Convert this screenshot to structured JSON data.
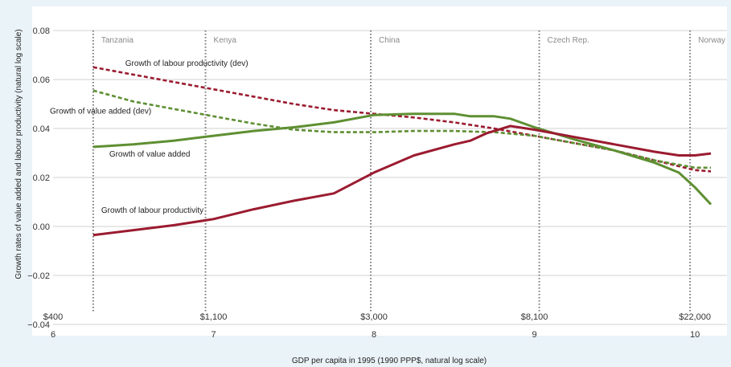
{
  "chart_data": {
    "type": "line",
    "xlabel": "GDP per capita in 1995 (1990 PPP$, natural log scale)",
    "ylabel": "Growth rates of value added and labour productivity (natural log scale)",
    "xlim": [
      6,
      10.2
    ],
    "ylim": [
      -0.04,
      0.08
    ],
    "x_ticks": [
      6,
      7,
      8,
      9,
      10
    ],
    "x_tick_labels": [
      "6",
      "7",
      "8",
      "9",
      "10"
    ],
    "y_ticks": [
      -0.04,
      -0.02,
      0.0,
      0.02,
      0.04,
      0.06,
      0.08
    ],
    "y_tick_labels": [
      "−0.04",
      "−0.02",
      "0.00",
      "0.02",
      "0.04",
      "0.06",
      "0.08"
    ],
    "gridlines": "horizontal",
    "dollar_labels": [
      {
        "x": 6.0,
        "label": "$400"
      },
      {
        "x": 7.0,
        "label": "$1,100"
      },
      {
        "x": 8.0,
        "label": "$3,000"
      },
      {
        "x": 9.0,
        "label": "$8,100"
      },
      {
        "x": 10.0,
        "label": "$22,000"
      }
    ],
    "country_markers": [
      {
        "name": "Tanzania",
        "x": 6.25
      },
      {
        "name": "Kenya",
        "x": 6.95
      },
      {
        "name": "China",
        "x": 7.98
      },
      {
        "name": "Czech Rep.",
        "x": 9.03
      },
      {
        "name": "Norway",
        "x": 9.97
      }
    ],
    "colors": {
      "labour": "#9b1b30",
      "value_added": "#5e8f32",
      "grid": "#d0d0d0",
      "marker": "#777777"
    },
    "series": [
      {
        "name": "Growth of labour productivity (dev)",
        "color": "#9b1b30",
        "dashed": true,
        "x": [
          6.25,
          6.5,
          6.75,
          7.0,
          7.25,
          7.5,
          7.75,
          8.0,
          8.25,
          8.5,
          8.75,
          9.0,
          9.25,
          9.5,
          9.75,
          10.0,
          10.1
        ],
        "y": [
          0.065,
          0.062,
          0.059,
          0.056,
          0.053,
          0.05,
          0.0475,
          0.046,
          0.0445,
          0.0425,
          0.04,
          0.037,
          0.034,
          0.031,
          0.027,
          0.023,
          0.0225
        ]
      },
      {
        "name": "Growth of value added (dev)",
        "color": "#5e8f32",
        "dashed": true,
        "x": [
          6.25,
          6.5,
          6.75,
          7.0,
          7.25,
          7.5,
          7.75,
          8.0,
          8.25,
          8.5,
          8.75,
          9.0,
          9.25,
          9.5,
          9.75,
          10.0,
          10.1
        ],
        "y": [
          0.0555,
          0.051,
          0.048,
          0.045,
          0.042,
          0.0395,
          0.0385,
          0.0385,
          0.039,
          0.039,
          0.0385,
          0.037,
          0.034,
          0.031,
          0.027,
          0.024,
          0.024
        ]
      },
      {
        "name": "Growth of value added",
        "color": "#5e8f32",
        "dashed": false,
        "x": [
          6.25,
          6.5,
          6.75,
          7.0,
          7.25,
          7.5,
          7.75,
          8.0,
          8.25,
          8.5,
          8.6,
          8.75,
          8.85,
          9.0,
          9.25,
          9.5,
          9.75,
          9.9,
          10.0,
          10.1
        ],
        "y": [
          0.0325,
          0.0335,
          0.035,
          0.037,
          0.039,
          0.0405,
          0.0425,
          0.0455,
          0.046,
          0.046,
          0.045,
          0.045,
          0.044,
          0.0405,
          0.0355,
          0.031,
          0.026,
          0.022,
          0.016,
          0.009
        ]
      },
      {
        "name": "Growth of labour productivity",
        "color": "#9b1b30",
        "dashed": false,
        "x": [
          6.25,
          6.5,
          6.75,
          7.0,
          7.25,
          7.5,
          7.75,
          8.0,
          8.25,
          8.5,
          8.6,
          8.7,
          8.85,
          9.0,
          9.25,
          9.5,
          9.75,
          9.9,
          10.0,
          10.1
        ],
        "y": [
          -0.0035,
          -0.0015,
          0.0005,
          0.003,
          0.007,
          0.0105,
          0.0135,
          0.022,
          0.029,
          0.0335,
          0.035,
          0.038,
          0.041,
          0.0395,
          0.0365,
          0.0335,
          0.0305,
          0.029,
          0.029,
          0.0298
        ]
      }
    ],
    "annotations": [
      {
        "text": "Growth of labour productivity (dev)",
        "x": 6.45,
        "y": 0.0655
      },
      {
        "text": "Growth of value added (dev)",
        "x": 5.98,
        "y": 0.046
      },
      {
        "text": "Growth of value added",
        "x": 6.35,
        "y": 0.0285
      },
      {
        "text": "Growth of labour productivity",
        "x": 6.3,
        "y": 0.0055
      }
    ]
  }
}
